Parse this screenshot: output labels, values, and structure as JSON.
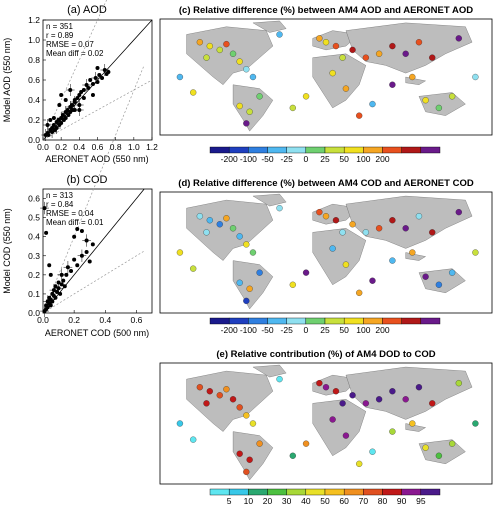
{
  "scatter_panels": [
    {
      "title": "(a) AOD",
      "ylabel": "Model AOD (550 nm)",
      "xlabel": "AERONET AOD (550 nm)",
      "stats": [
        "n = 351",
        "r = 0.89",
        "RMSE = 0.07",
        "Mean diff = 0.02"
      ],
      "xticks": [
        "0.0",
        "0.2",
        "0.4",
        "0.6",
        "0.8",
        "1.0",
        "1.2"
      ],
      "yticks": [
        "0.0",
        "0.2",
        "0.4",
        "0.6",
        "0.8",
        "1.0",
        "1.2"
      ]
    },
    {
      "title": "(b) COD",
      "ylabel": "Model COD (550 nm)",
      "xlabel": "AERONET COD (500 nm)",
      "stats": [
        "n = 313",
        "r = 0.84",
        "RMSE = 0.04",
        "Mean diff = 0.01"
      ],
      "xticks": [
        "0.0",
        "0.2",
        "0.4",
        "0.6"
      ],
      "yticks": [
        "0.0",
        "0.1",
        "0.2",
        "0.3",
        "0.4",
        "0.5",
        "0.6"
      ]
    }
  ],
  "map_panels": [
    {
      "title": "(c) Relative difference (%) between AM4 AOD and AERONET AOD",
      "colorbar_labels": [
        "-200",
        "-100",
        "-50",
        "-25",
        "0",
        "25",
        "50",
        "100",
        "200"
      ],
      "colorbar_colors": [
        "#1a1a8c",
        "#1f3fbf",
        "#2f7fe0",
        "#4fb8f0",
        "#8fe0f0",
        "#6fd070",
        "#c8e03c",
        "#f0e020",
        "#f5a623",
        "#e8501e",
        "#b01818",
        "#6a1a8a"
      ]
    },
    {
      "title": "(d) Relative difference (%) between AM4 COD and AERONET COD",
      "colorbar_labels": [
        "-200",
        "-100",
        "-50",
        "-25",
        "0",
        "25",
        "50",
        "100",
        "200"
      ],
      "colorbar_colors": [
        "#1a1a8c",
        "#1f3fbf",
        "#2f7fe0",
        "#4fb8f0",
        "#8fe0f0",
        "#6fd070",
        "#c8e03c",
        "#f0e020",
        "#f5a623",
        "#e8501e",
        "#b01818",
        "#6a1a8a"
      ]
    },
    {
      "title": "(e) Relative contribution (%) of AM4 DOD to COD",
      "colorbar_labels": [
        "5",
        "10",
        "20",
        "30",
        "40",
        "50",
        "60",
        "70",
        "80",
        "90",
        "95"
      ],
      "colorbar_colors": [
        "#5ee6f0",
        "#38c8e8",
        "#2aa870",
        "#4cc040",
        "#a8d838",
        "#e8e028",
        "#f5c020",
        "#f09020",
        "#e05020",
        "#c01818",
        "#8a1890",
        "#4a1a8a"
      ]
    }
  ],
  "chart_data": [
    {
      "type": "scatter",
      "title": "(a) AOD",
      "xlabel": "AERONET AOD (550 nm)",
      "ylabel": "Model AOD (550 nm)",
      "xlim": [
        0,
        1.2
      ],
      "ylim": [
        0,
        1.2
      ],
      "points": [
        [
          0.03,
          0.05
        ],
        [
          0.05,
          0.07
        ],
        [
          0.06,
          0.05
        ],
        [
          0.08,
          0.1
        ],
        [
          0.1,
          0.08
        ],
        [
          0.1,
          0.12
        ],
        [
          0.12,
          0.15
        ],
        [
          0.13,
          0.1
        ],
        [
          0.15,
          0.12
        ],
        [
          0.15,
          0.18
        ],
        [
          0.17,
          0.2
        ],
        [
          0.18,
          0.15
        ],
        [
          0.2,
          0.22
        ],
        [
          0.2,
          0.17
        ],
        [
          0.22,
          0.25
        ],
        [
          0.23,
          0.2
        ],
        [
          0.25,
          0.28
        ],
        [
          0.25,
          0.22
        ],
        [
          0.27,
          0.3
        ],
        [
          0.28,
          0.25
        ],
        [
          0.3,
          0.33
        ],
        [
          0.3,
          0.28
        ],
        [
          0.32,
          0.35
        ],
        [
          0.33,
          0.3
        ],
        [
          0.35,
          0.38
        ],
        [
          0.35,
          0.4
        ],
        [
          0.38,
          0.42
        ],
        [
          0.4,
          0.45
        ],
        [
          0.4,
          0.35
        ],
        [
          0.42,
          0.48
        ],
        [
          0.45,
          0.5
        ],
        [
          0.45,
          0.42
        ],
        [
          0.48,
          0.55
        ],
        [
          0.5,
          0.52
        ],
        [
          0.52,
          0.6
        ],
        [
          0.55,
          0.56
        ],
        [
          0.58,
          0.62
        ],
        [
          0.6,
          0.58
        ],
        [
          0.62,
          0.65
        ],
        [
          0.65,
          0.62
        ],
        [
          0.68,
          0.7
        ],
        [
          0.7,
          0.66
        ],
        [
          0.72,
          0.68
        ],
        [
          0.2,
          0.45
        ],
        [
          0.3,
          0.5
        ],
        [
          0.18,
          0.35
        ],
        [
          0.25,
          0.4
        ],
        [
          0.6,
          0.72
        ],
        [
          0.05,
          0.15
        ],
        [
          0.08,
          0.2
        ],
        [
          0.12,
          0.22
        ],
        [
          0.35,
          0.3
        ],
        [
          0.4,
          0.3
        ],
        [
          0.55,
          0.45
        ]
      ]
    },
    {
      "type": "scatter",
      "title": "(b) COD",
      "xlabel": "AERONET COD (500 nm)",
      "ylabel": "Model COD (550 nm)",
      "xlim": [
        0,
        0.7
      ],
      "ylim": [
        0,
        0.65
      ],
      "points": [
        [
          0.01,
          0.01
        ],
        [
          0.02,
          0.02
        ],
        [
          0.02,
          0.04
        ],
        [
          0.03,
          0.03
        ],
        [
          0.03,
          0.06
        ],
        [
          0.04,
          0.05
        ],
        [
          0.04,
          0.08
        ],
        [
          0.05,
          0.04
        ],
        [
          0.05,
          0.07
        ],
        [
          0.06,
          0.1
        ],
        [
          0.06,
          0.06
        ],
        [
          0.07,
          0.09
        ],
        [
          0.07,
          0.12
        ],
        [
          0.08,
          0.08
        ],
        [
          0.08,
          0.14
        ],
        [
          0.09,
          0.11
        ],
        [
          0.1,
          0.13
        ],
        [
          0.1,
          0.16
        ],
        [
          0.11,
          0.1
        ],
        [
          0.12,
          0.15
        ],
        [
          0.12,
          0.2
        ],
        [
          0.13,
          0.17
        ],
        [
          0.14,
          0.14
        ],
        [
          0.15,
          0.2
        ],
        [
          0.16,
          0.24
        ],
        [
          0.18,
          0.22
        ],
        [
          0.2,
          0.28
        ],
        [
          0.22,
          0.25
        ],
        [
          0.25,
          0.3
        ],
        [
          0.28,
          0.32
        ],
        [
          0.3,
          0.27
        ],
        [
          0.02,
          0.42
        ],
        [
          0.01,
          0.55
        ],
        [
          0.2,
          0.4
        ],
        [
          0.22,
          0.44
        ],
        [
          0.25,
          0.43
        ],
        [
          0.28,
          0.38
        ],
        [
          0.32,
          0.36
        ],
        [
          0.04,
          0.25
        ],
        [
          0.05,
          0.2
        ]
      ]
    }
  ]
}
